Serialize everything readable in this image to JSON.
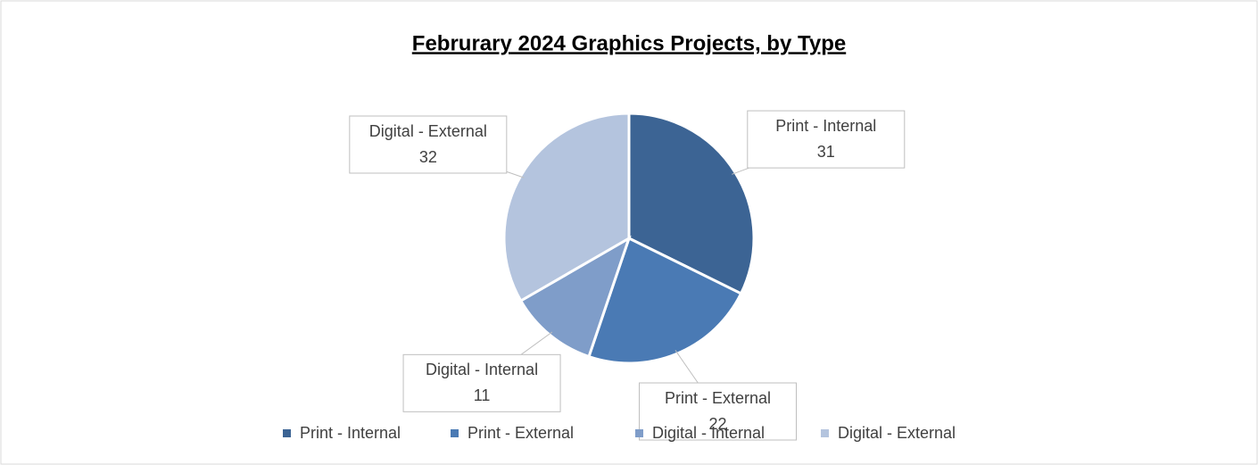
{
  "chart_data": {
    "type": "pie",
    "title": "Februrary 2024 Graphics Projects, by Type",
    "categories": [
      "Print - Internal",
      "Print - External",
      "Digital - Internal",
      "Digital - External"
    ],
    "values": [
      31,
      22,
      11,
      32
    ],
    "colors": [
      "#3c6494",
      "#4a7ab4",
      "#7f9dc9",
      "#b4c4de"
    ],
    "legend": "bottom"
  }
}
